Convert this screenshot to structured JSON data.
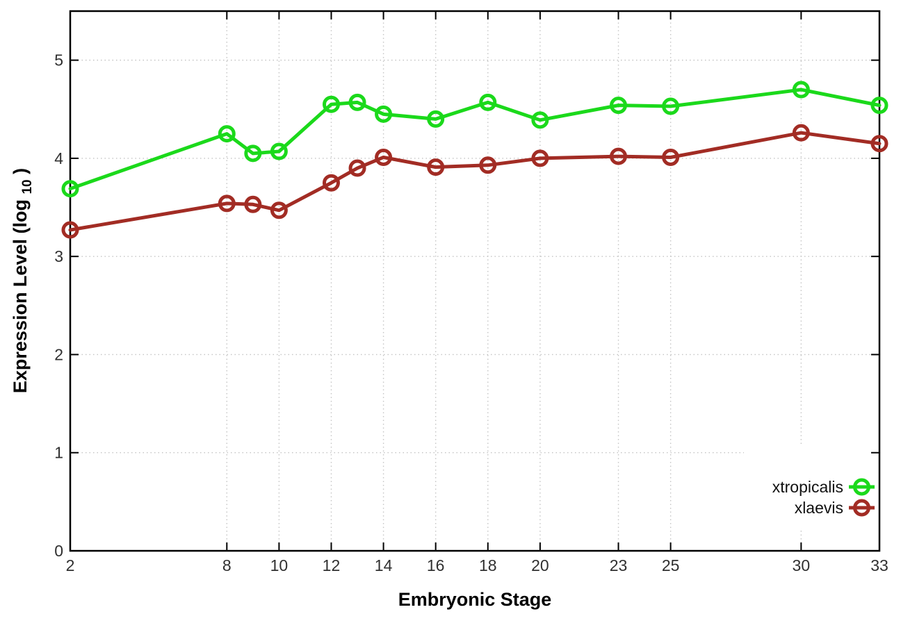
{
  "chart_data": {
    "type": "line",
    "title": "",
    "xlabel": "Embryonic Stage",
    "ylabel": "Expression Level (log10)",
    "ylabel_parts": {
      "main": "Expression Level (log",
      "sub": "10",
      "end": ")"
    },
    "x": [
      2,
      8,
      9,
      10,
      12,
      13,
      14,
      16,
      18,
      20,
      23,
      25,
      30,
      33
    ],
    "series": [
      {
        "name": "xtropicalis",
        "color": "#1bd91b",
        "values": [
          3.69,
          4.25,
          4.05,
          4.07,
          4.55,
          4.57,
          4.45,
          4.4,
          4.57,
          4.39,
          4.54,
          4.53,
          4.7,
          4.54
        ]
      },
      {
        "name": "xlaevis",
        "color": "#a22c24",
        "values": [
          3.27,
          3.54,
          3.53,
          3.47,
          3.75,
          3.9,
          4.01,
          3.91,
          3.93,
          4.0,
          4.02,
          4.01,
          4.26,
          4.15
        ]
      }
    ],
    "xticks": [
      2,
      8,
      10,
      12,
      14,
      16,
      18,
      20,
      23,
      25,
      30,
      33
    ],
    "yticks": [
      0,
      1,
      2,
      3,
      4,
      5
    ],
    "xlim": [
      2,
      33
    ],
    "ylim": [
      0,
      5.5
    ],
    "grid": true,
    "grid_color": "#c4c4c4",
    "border_color": "#000000",
    "legend_position": "inside-bottom-right",
    "marker": "open-circle"
  }
}
